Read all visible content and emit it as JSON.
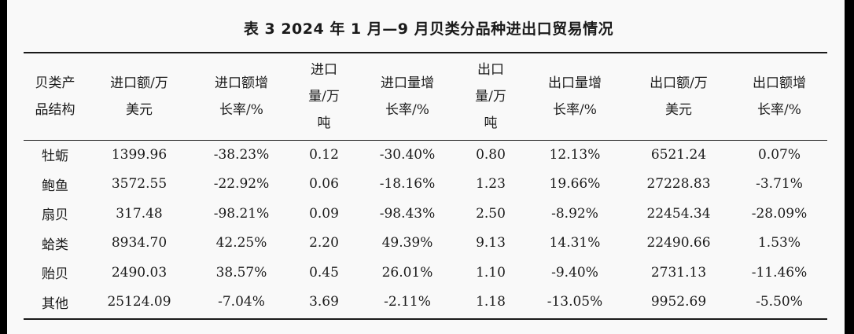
{
  "title": "表 3 2024 年 1 月—9 月贝类分品种进出口贸易情况",
  "headers": [
    [
      "贝类产",
      "品结构"
    ],
    [
      "进口额/万",
      "美元"
    ],
    [
      "进口额增",
      "长率/%"
    ],
    [
      "进口",
      "量/万",
      "吨"
    ],
    [
      "进口量增",
      "长率/%"
    ],
    [
      "出口",
      "量/万",
      "吨"
    ],
    [
      "出口量增",
      "长率/%"
    ],
    [
      "出口额/万",
      "美元"
    ],
    [
      "出口额增",
      "长率/%"
    ]
  ],
  "rows": [
    [
      "牡蛎",
      "1399.96",
      "-38.23%",
      "0.12",
      "-30.40%",
      "0.80",
      "12.13%",
      "6521.24",
      "0.07%"
    ],
    [
      "鲍鱼",
      "3572.55",
      "-22.92%",
      "0.06",
      "-18.16%",
      "1.23",
      "19.66%",
      "27228.83",
      "-3.71%"
    ],
    [
      "扇贝",
      "317.48",
      "-98.21%",
      "0.09",
      "-98.43%",
      "2.50",
      "-8.92%",
      "22454.34",
      "-28.09%"
    ],
    [
      "蛤类",
      "8934.70",
      "42.25%",
      "2.20",
      "49.39%",
      "9.13",
      "14.31%",
      "22490.66",
      "1.53%"
    ],
    [
      "贻贝",
      "2490.03",
      "38.57%",
      "0.45",
      "26.01%",
      "1.10",
      "-9.40%",
      "2731.13",
      "-11.46%"
    ],
    [
      "其他",
      "25124.09",
      "-7.04%",
      "3.69",
      "-2.11%",
      "1.18",
      "-13.05%",
      "9952.69",
      "-5.50%"
    ]
  ]
}
